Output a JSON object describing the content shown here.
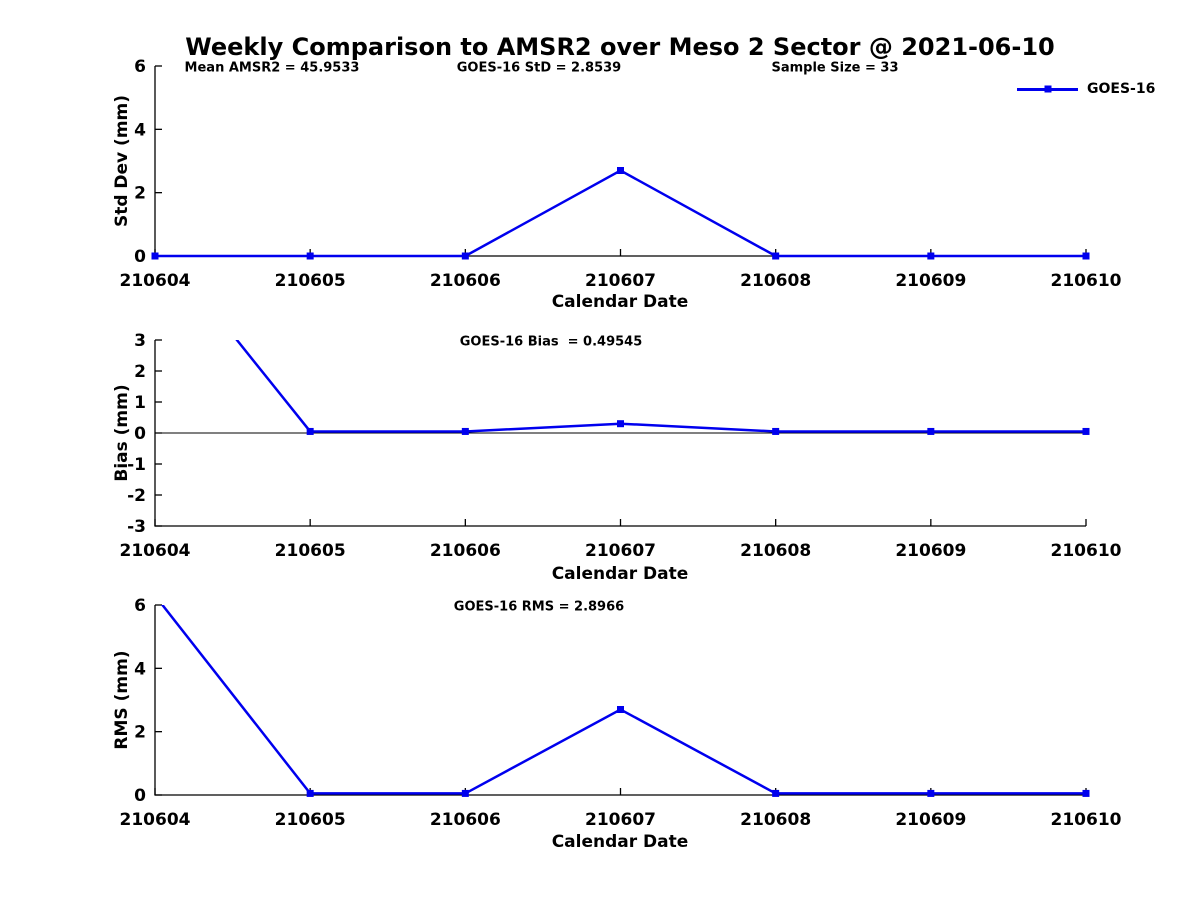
{
  "figure": {
    "title": "Weekly Comparison to AMSR2 over Meso 2 Sector @ 2021-06-10",
    "background_color": "#ffffff",
    "text_color": "#000000",
    "series_color": "#0000ee",
    "axis_color": "#000000"
  },
  "chart_data": [
    {
      "type": "line",
      "panel": "std-dev",
      "annotations": [
        "Mean AMSR2 = 45.9533",
        "GOES-16 StD = 2.8539",
        "Sample Size = 33"
      ],
      "legend": {
        "label": "GOES-16",
        "position": "top-right-outside",
        "marker": "filled-square",
        "color": "#0000ee"
      },
      "ylabel": "Std Dev (mm)",
      "xlabel": "Calendar Date",
      "x": [
        210604,
        210605,
        210606,
        210607,
        210608,
        210609,
        210610
      ],
      "values": [
        0,
        0,
        0,
        2.7,
        0,
        0,
        0
      ],
      "ylim": [
        0,
        6
      ],
      "yticks": [
        0,
        2,
        4,
        6
      ],
      "zero_line": false,
      "grid": false,
      "marker": "square"
    },
    {
      "type": "line",
      "panel": "bias",
      "annotations": [
        "GOES-16 Bias  = 0.49545"
      ],
      "ylabel": "Bias (mm)",
      "xlabel": "Calendar Date",
      "x": [
        210604,
        210605,
        210606,
        210607,
        210608,
        210609,
        210610
      ],
      "values": [
        6.3,
        0.05,
        0.05,
        0.3,
        0.05,
        0.05,
        0.05
      ],
      "ylim": [
        -3,
        3
      ],
      "yticks": [
        3,
        2,
        1,
        0,
        -1,
        -2,
        -3
      ],
      "zero_line": true,
      "grid": false,
      "marker": "square"
    },
    {
      "type": "line",
      "panel": "rms",
      "annotations": [
        "GOES-16 RMS = 2.8966"
      ],
      "ylabel": "RMS (mm)",
      "xlabel": "Calendar Date",
      "x": [
        210604,
        210605,
        210606,
        210607,
        210608,
        210609,
        210610
      ],
      "values": [
        6.3,
        0.05,
        0.05,
        2.7,
        0.05,
        0.05,
        0.05
      ],
      "ylim": [
        0,
        6
      ],
      "yticks": [
        0,
        2,
        4,
        6
      ],
      "zero_line": false,
      "grid": false,
      "marker": "square"
    }
  ]
}
